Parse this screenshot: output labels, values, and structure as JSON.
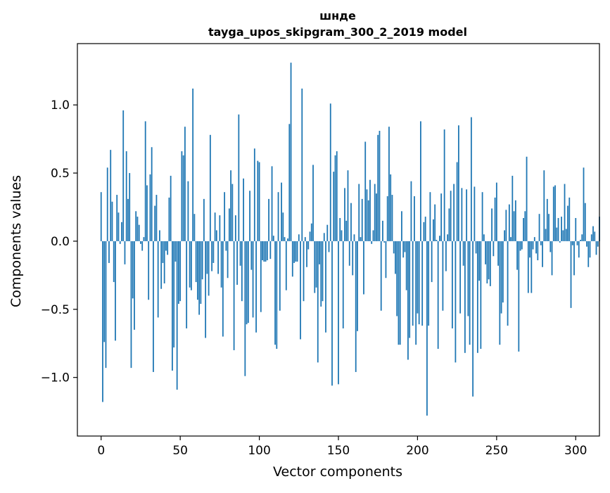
{
  "chart_data": {
    "type": "bar",
    "title_line1": "шнде",
    "title_line2": "tayga_upos_skipgram_300_2_2019 model",
    "xlabel": "Vector components",
    "ylabel": "Components values",
    "xlim": [
      -15,
      315
    ],
    "ylim": [
      -1.43,
      1.45
    ],
    "x_ticks": [
      0,
      50,
      100,
      150,
      200,
      250,
      300
    ],
    "x_tick_labels": [
      "0",
      "50",
      "100",
      "150",
      "200",
      "250",
      "300"
    ],
    "y_ticks": [
      -1.0,
      -0.5,
      0.0,
      0.5,
      1.0
    ],
    "y_tick_labels": [
      "−1.0",
      "−0.5",
      "0.0",
      "0.5",
      "1.0"
    ],
    "bar_color": "#1f77b4",
    "values": [
      0.36,
      -1.18,
      -0.74,
      -0.93,
      0.54,
      -0.16,
      0.67,
      0.29,
      -0.3,
      -0.73,
      0.34,
      0.21,
      -0.02,
      0.14,
      0.96,
      -0.17,
      0.66,
      0.31,
      0.5,
      -0.93,
      -0.42,
      -0.65,
      0.22,
      0.18,
      0.12,
      -0.02,
      -0.07,
      0.03,
      0.88,
      0.41,
      -0.43,
      0.49,
      0.69,
      -0.96,
      0.26,
      0.34,
      -0.56,
      0.08,
      -0.35,
      -0.16,
      -0.31,
      -0.07,
      -0.1,
      0.32,
      0.48,
      -0.95,
      -0.78,
      -0.15,
      -1.09,
      -0.46,
      -0.44,
      0.66,
      0.63,
      0.84,
      -0.64,
      0.44,
      -0.34,
      -0.36,
      1.12,
      0.2,
      -0.3,
      -0.43,
      -0.54,
      -0.46,
      -0.28,
      0.31,
      -0.71,
      -0.24,
      -0.4,
      0.78,
      -0.22,
      -0.16,
      0.21,
      0.08,
      -0.24,
      0.19,
      -0.34,
      -0.7,
      0.36,
      -0.07,
      -0.27,
      0.24,
      0.52,
      0.42,
      -0.8,
      0.19,
      -0.32,
      0.93,
      -0.18,
      -0.44,
      0.46,
      -0.99,
      -0.61,
      -0.6,
      0.37,
      -0.21,
      -0.56,
      0.68,
      -0.67,
      0.59,
      0.58,
      -0.52,
      -0.14,
      -0.15,
      -0.15,
      -0.14,
      0.31,
      -0.13,
      0.55,
      0.04,
      -0.76,
      -0.79,
      0.36,
      -0.51,
      0.43,
      0.21,
      0.03,
      -0.36,
      0.02,
      0.86,
      1.31,
      -0.26,
      -0.16,
      -0.15,
      -0.15,
      0.05,
      -0.72,
      1.12,
      -0.44,
      0.03,
      -0.19,
      -0.06,
      0.07,
      0.13,
      0.56,
      -0.38,
      -0.34,
      -0.89,
      -0.17,
      -0.48,
      -0.44,
      0.06,
      -0.67,
      0.12,
      -0.08,
      1.01,
      -1.06,
      0.51,
      0.63,
      0.66,
      -1.05,
      0.17,
      0.08,
      -0.64,
      0.39,
      0.15,
      0.52,
      -0.18,
      0.28,
      -0.25,
      0.05,
      -0.96,
      -0.66,
      0.42,
      0.03,
      0.31,
      -0.39,
      0.73,
      0.38,
      0.3,
      0.45,
      -0.02,
      0.08,
      0.42,
      0.35,
      0.78,
      0.81,
      -0.51,
      0.15,
      -0.01,
      -0.27,
      0.33,
      0.84,
      0.49,
      0.34,
      -0.09,
      -0.24,
      -0.55,
      -0.76,
      -0.76,
      0.22,
      -0.12,
      -0.08,
      -0.36,
      -0.87,
      -0.71,
      0.44,
      -0.62,
      0.33,
      -0.76,
      -0.53,
      -0.61,
      0.88,
      -0.62,
      0.14,
      0.18,
      -1.28,
      -0.62,
      0.36,
      -0.3,
      0.16,
      0.27,
      0.01,
      -0.79,
      0.04,
      0.35,
      -0.51,
      0.82,
      -0.22,
      0.05,
      0.24,
      0.37,
      -0.64,
      0.42,
      -0.89,
      0.58,
      0.85,
      -0.53,
      0.39,
      -0.18,
      -0.82,
      0.38,
      -0.55,
      -0.76,
      0.91,
      -1.14,
      0.4,
      -0.09,
      -0.82,
      -0.29,
      -0.79,
      0.36,
      0.05,
      -0.17,
      -0.31,
      -0.28,
      -0.33,
      0.24,
      -0.11,
      0.32,
      0.43,
      -0.18,
      -0.76,
      -0.53,
      -0.45,
      0.08,
      0.23,
      -0.62,
      0.27,
      0.03,
      0.48,
      0.22,
      0.3,
      -0.21,
      -0.81,
      -0.07,
      -0.06,
      0.17,
      0.22,
      0.62,
      -0.38,
      -0.12,
      -0.38,
      -0.06,
      0.03,
      -0.09,
      -0.14,
      0.2,
      -0.03,
      -0.19,
      0.52,
      0.09,
      0.31,
      0.2,
      -0.08,
      -0.25,
      0.4,
      0.41,
      0.1,
      0.17,
      -0.01,
      0.18,
      0.08,
      0.42,
      0.09,
      0.26,
      0.32,
      -0.49,
      -0.03,
      -0.25,
      0.17,
      -0.03,
      -0.12,
      0.01,
      0.05,
      0.54,
      0.28,
      -0.04,
      -0.19,
      -0.12,
      0.05,
      0.11,
      0.07,
      -0.1,
      -0.04,
      0.18
    ]
  }
}
